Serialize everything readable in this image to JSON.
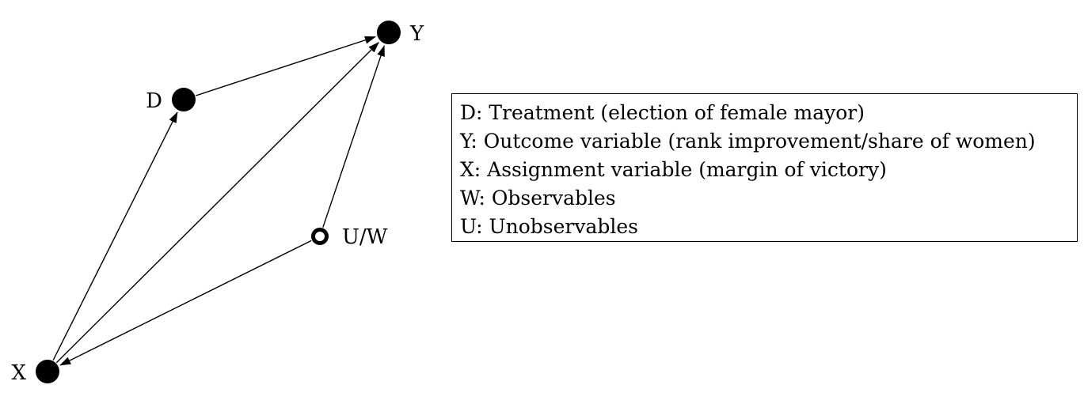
{
  "diagram": {
    "nodes": [
      {
        "id": "Y",
        "label": "Y",
        "style": "filled"
      },
      {
        "id": "D",
        "label": "D",
        "style": "filled"
      },
      {
        "id": "UW",
        "label": "U/W",
        "style": "hollow"
      },
      {
        "id": "X",
        "label": "X",
        "style": "filled"
      }
    ],
    "edges": [
      {
        "from": "D",
        "to": "Y"
      },
      {
        "from": "X",
        "to": "D"
      },
      {
        "from": "X",
        "to": "Y"
      },
      {
        "from": "UW",
        "to": "Y"
      },
      {
        "from": "UW",
        "to": "X"
      }
    ]
  },
  "legend": {
    "items": [
      "D: Treatment (election of female mayor)",
      "Y: Outcome variable (rank improvement/share of women)",
      "X: Assignment variable (margin of victory)",
      "W: Observables",
      "U: Unobservables"
    ]
  }
}
